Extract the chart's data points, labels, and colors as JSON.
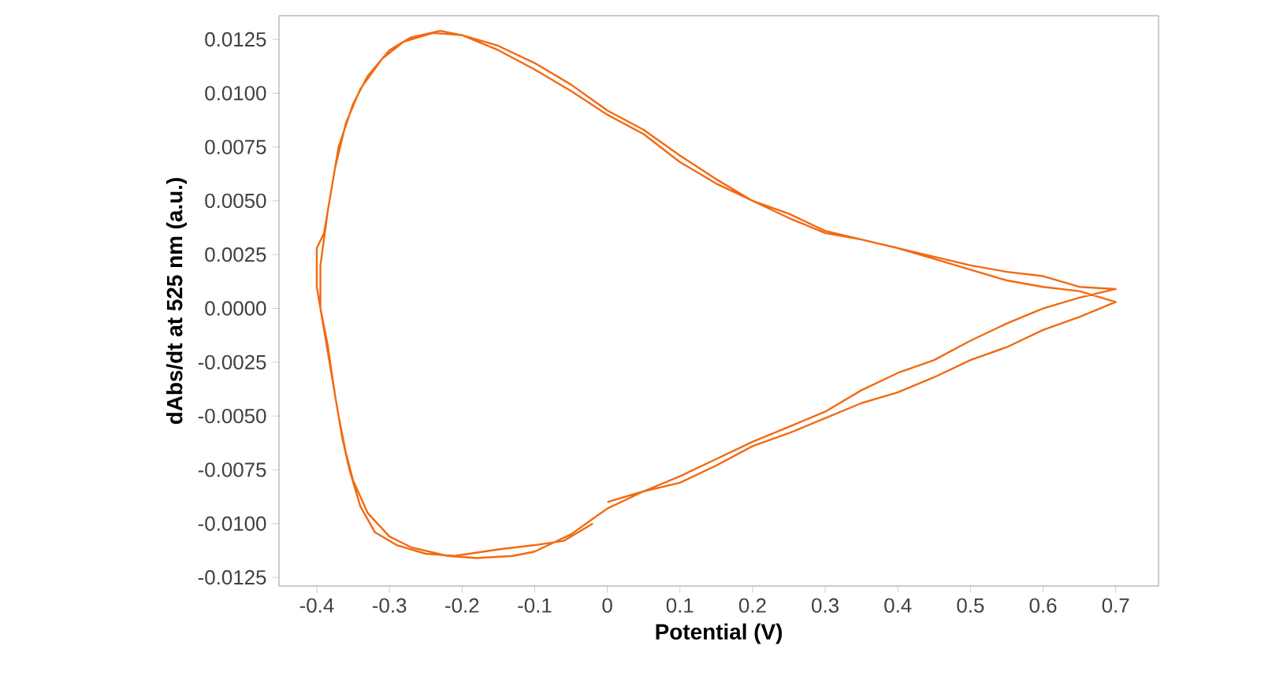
{
  "chart_data": {
    "type": "line",
    "xlabel": "Potential (V)",
    "ylabel": "dAbs/dt at 525 nm (a.u.)",
    "xlim": [
      -0.452,
      0.759
    ],
    "ylim": [
      -0.0129,
      0.0136
    ],
    "xticks": [
      -0.4,
      -0.3,
      -0.2,
      -0.1,
      0,
      0.1,
      0.2,
      0.3,
      0.4,
      0.5,
      0.6,
      0.7
    ],
    "yticks": [
      {
        "value": -0.0125,
        "label": "-0.0125"
      },
      {
        "value": -0.01,
        "label": "-0.0100"
      },
      {
        "value": -0.0075,
        "label": "-0.0075"
      },
      {
        "value": -0.005,
        "label": "-0.0050"
      },
      {
        "value": -0.0025,
        "label": "-0.0025"
      },
      {
        "value": 0,
        "label": "0.0000"
      },
      {
        "value": 0.0025,
        "label": "0.0025"
      },
      {
        "value": 0.005,
        "label": "0.0050"
      },
      {
        "value": 0.0075,
        "label": "0.0075"
      },
      {
        "value": 0.01,
        "label": "0.0100"
      },
      {
        "value": 0.0125,
        "label": "0.0125"
      }
    ],
    "series": [
      {
        "color": "#f26a12",
        "x": [
          0,
          0.05,
          0.1,
          0.15,
          0.2,
          0.25,
          0.3,
          0.35,
          0.4,
          0.45,
          0.5,
          0.55,
          0.6,
          0.65,
          0.7,
          0.65,
          0.6,
          0.55,
          0.5,
          0.45,
          0.4,
          0.35,
          0.3,
          0.25,
          0.2,
          0.15,
          0.1,
          0.05,
          0,
          -0.05,
          -0.1,
          -0.15,
          -0.2,
          -0.23,
          -0.27,
          -0.3,
          -0.33,
          -0.35,
          -0.37,
          -0.38,
          -0.39,
          -0.4,
          -0.4,
          -0.39,
          -0.38,
          -0.37,
          -0.36,
          -0.35,
          -0.33,
          -0.3,
          -0.27,
          -0.22,
          -0.18,
          -0.13,
          -0.1,
          -0.05,
          0,
          0.05,
          0.1,
          0.15,
          0.2,
          0.25,
          0.3,
          0.35,
          0.4,
          0.45,
          0.5,
          0.55,
          0.6,
          0.65,
          0.7,
          0.65,
          0.6,
          0.55,
          0.5,
          0.45,
          0.4,
          0.35,
          0.3,
          0.25,
          0.2,
          0.15,
          0.1,
          0.05,
          0,
          -0.05,
          -0.1,
          -0.15,
          -0.2,
          -0.24,
          -0.28,
          -0.31,
          -0.34,
          -0.36,
          -0.375,
          -0.385,
          -0.395,
          -0.395,
          -0.385,
          -0.375,
          -0.365,
          -0.355,
          -0.34,
          -0.32,
          -0.29,
          -0.25,
          -0.21,
          -0.15,
          -0.1,
          -0.06,
          -0.02
        ],
        "values": [
          -0.009,
          -0.0085,
          -0.0078,
          -0.007,
          -0.0062,
          -0.0055,
          -0.0048,
          -0.0038,
          -0.003,
          -0.0024,
          -0.0015,
          -0.0007,
          0,
          0.0005,
          0.0009,
          0.001,
          0.0015,
          0.0017,
          0.002,
          0.0024,
          0.0028,
          0.0032,
          0.0036,
          0.0044,
          0.005,
          0.006,
          0.0071,
          0.0083,
          0.0092,
          0.0104,
          0.0114,
          0.0122,
          0.0127,
          0.0129,
          0.0126,
          0.012,
          0.0108,
          0.0095,
          0.0075,
          0.0055,
          0.0035,
          0.0028,
          0.001,
          -0.001,
          -0.003,
          -0.005,
          -0.0067,
          -0.008,
          -0.0095,
          -0.0106,
          -0.0111,
          -0.0115,
          -0.0116,
          -0.0115,
          -0.0113,
          -0.0105,
          -0.0093,
          -0.0085,
          -0.0081,
          -0.0073,
          -0.0064,
          -0.0058,
          -0.0051,
          -0.0044,
          -0.0039,
          -0.0032,
          -0.0024,
          -0.0018,
          -0.001,
          -0.0004,
          0.0003,
          0.0008,
          0.001,
          0.0013,
          0.0018,
          0.0023,
          0.0028,
          0.0032,
          0.0035,
          0.0042,
          0.005,
          0.0058,
          0.0068,
          0.0081,
          0.009,
          0.0101,
          0.0111,
          0.012,
          0.0127,
          0.0128,
          0.0124,
          0.0116,
          0.0102,
          0.0086,
          0.0065,
          0.0045,
          0.002,
          0,
          -0.0017,
          -0.004,
          -0.006,
          -0.0075,
          -0.0092,
          -0.0104,
          -0.011,
          -0.0114,
          -0.0115,
          -0.0112,
          -0.011,
          -0.0108,
          -0.01
        ]
      }
    ]
  }
}
